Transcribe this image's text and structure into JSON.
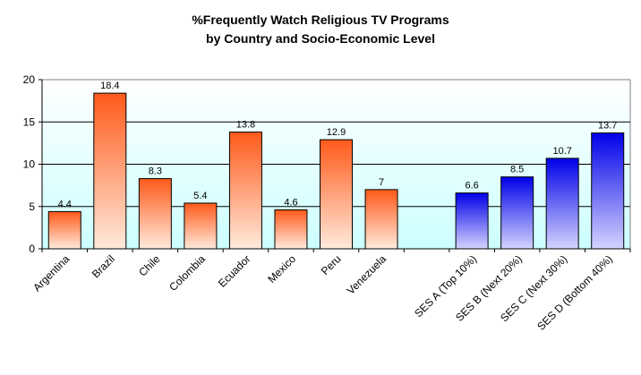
{
  "chart_data": {
    "type": "bar",
    "title": "%Frequently Watch Religious TV Programs",
    "subtitle": "by Country and Socio-Economic Level",
    "xlabel": "",
    "ylabel": "",
    "ylim": [
      0,
      20
    ],
    "yticks": [
      0,
      5,
      10,
      15,
      20
    ],
    "grid": true,
    "legend": "none",
    "categories": [
      "Argentina",
      "Brazil",
      "Chile",
      "Colombia",
      "Ecuador",
      "Mexico",
      "Peru",
      "Venezuela",
      "",
      "SES A (Top 10%)",
      "SES B (Next 20%)",
      "SES C (Next 30%)",
      "SES D (Bottom 40%)"
    ],
    "values": [
      4.4,
      18.4,
      8.3,
      5.4,
      13.8,
      4.6,
      12.9,
      7,
      null,
      6.6,
      8.5,
      10.7,
      13.7
    ],
    "groups": [
      "country",
      "country",
      "country",
      "country",
      "country",
      "country",
      "country",
      "country",
      "",
      "ses",
      "ses",
      "ses",
      "ses"
    ],
    "colors": {
      "country_top": "#ff5a1a",
      "country_bottom": "#ffeadc",
      "ses_top": "#0000e8",
      "ses_bottom": "#d4d4ff",
      "plot_top": "#ffffff",
      "plot_bottom": "#ccffff"
    }
  }
}
